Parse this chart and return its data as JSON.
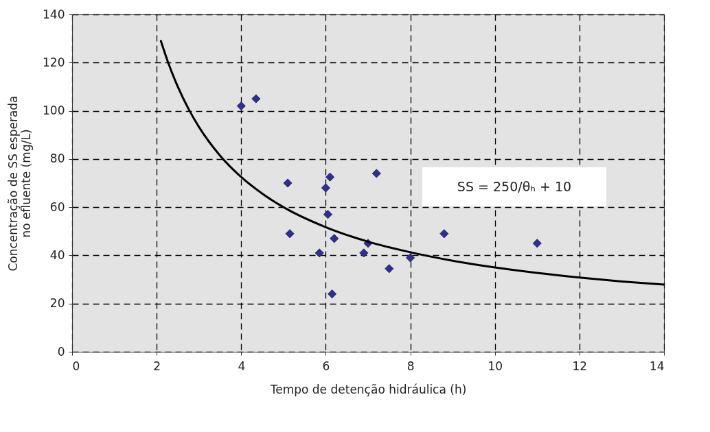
{
  "chart_data": {
    "type": "scatter",
    "xlabel": "Tempo de detenção hidráulica (h)",
    "ylabel": "Concentração de SS esperada\nno efluente (mg/L)",
    "xlim": [
      0,
      14
    ],
    "xticks": [
      0,
      2,
      4,
      6,
      8,
      10,
      12,
      14
    ],
    "ylim": [
      0,
      140
    ],
    "yticks": [
      0,
      20,
      40,
      60,
      80,
      100,
      120,
      140
    ],
    "grid": true,
    "series": [
      {
        "type": "scatter",
        "marker": "diamond",
        "color": "#2e2e96",
        "x": [
          4.0,
          4.35,
          5.1,
          5.15,
          5.85,
          6.0,
          6.05,
          6.1,
          6.2,
          6.15,
          6.9,
          7.0,
          7.2,
          7.5,
          8.0,
          8.8,
          11.0
        ],
        "values": [
          102,
          105,
          70,
          49,
          41,
          68,
          57,
          72.5,
          47,
          24,
          41,
          45,
          74,
          34.5,
          39,
          49,
          45
        ]
      },
      {
        "type": "line",
        "name": "SS = 250/θₕ + 10",
        "color": "#000000",
        "line_style": "solid",
        "x": [
          2.1,
          2.25,
          2.5,
          2.75,
          3,
          3.5,
          4,
          4.5,
          5,
          6,
          7,
          8,
          9,
          10,
          11,
          12,
          13,
          14
        ],
        "values": [
          129.0,
          121.1,
          110,
          100.9,
          93.3,
          81.4,
          72.5,
          65.6,
          60,
          51.7,
          45.7,
          41.3,
          37.8,
          35,
          32.7,
          30.8,
          29.2,
          27.9
        ]
      }
    ]
  }
}
